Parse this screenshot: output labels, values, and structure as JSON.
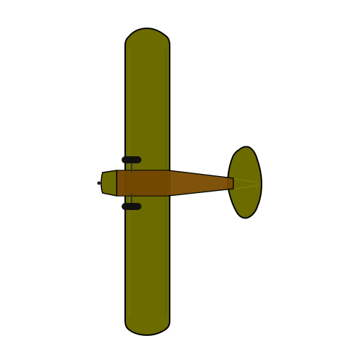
{
  "scene": {
    "subject": "airplane-top-view",
    "background_color": "#ffffff"
  },
  "colors": {
    "wing": "#6b6b00",
    "wing_shade": "#7a7a08",
    "fuselage": "#7a4a00",
    "fuselage_light": "#8a5a08",
    "tail": "#6b6b00",
    "outline": "#000000",
    "wheel": "#111111"
  }
}
